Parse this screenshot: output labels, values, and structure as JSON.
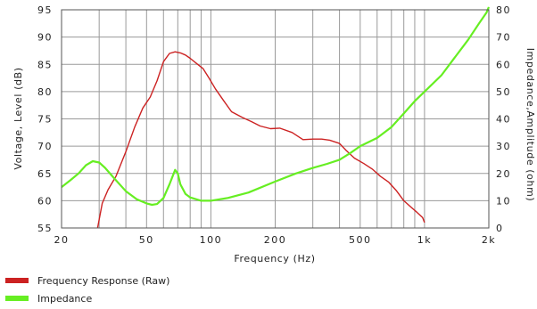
{
  "chart_data": {
    "type": "line",
    "xlabel": "Frequency (Hz)",
    "ylabel_left": "Voltage, Level (dB)",
    "ylabel_right": "Impedance,Amplitude (ohm)",
    "x_scale": "log",
    "xlim": [
      20,
      2000
    ],
    "ylim_left": [
      55,
      95
    ],
    "ylim_right": [
      0,
      80
    ],
    "x_ticks": [
      20,
      50,
      100,
      200,
      500,
      1000,
      2000
    ],
    "x_tick_labels": [
      "20",
      "50",
      "100",
      "200",
      "500",
      "1k",
      "2k"
    ],
    "y_left_ticks": [
      55,
      60,
      65,
      70,
      75,
      80,
      85,
      90,
      95
    ],
    "y_right_ticks": [
      0,
      10,
      20,
      30,
      40,
      50,
      60,
      70,
      80
    ],
    "grid": true,
    "legend_position": "bottom-left",
    "series": [
      {
        "name": "Frequency Response (Raw)",
        "axis": "left",
        "color": "#cc2222",
        "x": [
          29.5,
          31,
          33,
          36,
          40,
          44,
          48,
          52,
          56,
          60,
          64,
          68,
          72,
          76,
          80,
          86,
          92,
          98,
          105,
          115,
          125,
          140,
          155,
          170,
          190,
          210,
          240,
          270,
          300,
          330,
          360,
          400,
          430,
          470,
          520,
          570,
          620,
          680,
          740,
          800,
          860,
          920,
          980,
          1000
        ],
        "values": [
          55,
          59.5,
          62,
          64.5,
          69,
          73.5,
          77,
          79,
          82,
          85.5,
          87,
          87.3,
          87.1,
          86.7,
          86.1,
          85.1,
          84.2,
          82.5,
          80.5,
          78.3,
          76.3,
          75.3,
          74.5,
          73.7,
          73.2,
          73.3,
          72.5,
          71.2,
          71.3,
          71.3,
          71.1,
          70.5,
          69.2,
          67.8,
          66.8,
          65.8,
          64.5,
          63.4,
          61.8,
          60,
          58.9,
          57.9,
          56.9,
          56
        ]
      },
      {
        "name": "Impedance",
        "axis": "right",
        "color": "#66ee22",
        "x": [
          20,
          22,
          24,
          26,
          28,
          30,
          32,
          35,
          40,
          45,
          50,
          53,
          56,
          60,
          64,
          68,
          70,
          72,
          76,
          80,
          90,
          100,
          120,
          150,
          200,
          250,
          300,
          350,
          400,
          450,
          500,
          600,
          700,
          800,
          900,
          1000,
          1200,
          1400,
          1600,
          1800,
          1950,
          2000
        ],
        "values": [
          15,
          17.5,
          20,
          23,
          24.5,
          24,
          22,
          18.5,
          13.5,
          10.5,
          9,
          8.5,
          8.8,
          11,
          16,
          21.3,
          20,
          16,
          12.5,
          11.2,
          10,
          10,
          11,
          13,
          17,
          20,
          22,
          23.5,
          25,
          27.5,
          30,
          33,
          37,
          42,
          46.5,
          50,
          56,
          63,
          69,
          75,
          79,
          81
        ]
      }
    ]
  }
}
